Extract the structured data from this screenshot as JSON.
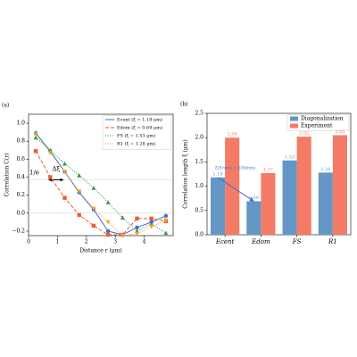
{
  "chart_data": [
    {
      "type": "line",
      "panel_label": "(a)",
      "xlabel": "Distance r (μm)",
      "ylabel": "Correlation C(r)",
      "x": [
        0.25,
        0.75,
        1.25,
        1.75,
        2.25,
        2.75,
        3.25,
        3.75,
        4.25,
        4.75
      ],
      "xlim": [
        0,
        5
      ],
      "xticks": [
        0,
        1,
        2,
        3,
        4
      ],
      "ylim": [
        -0.25,
        1.1
      ],
      "yticks": [
        {
          "value": -0.2,
          "label": "−0.2"
        },
        {
          "value": 0,
          "label": "0.0"
        },
        {
          "value": 0.2,
          "label": "0.2"
        },
        {
          "value": 0.4,
          "label": "0.4"
        },
        {
          "value": 0.6,
          "label": "0.6"
        },
        {
          "value": 0.8,
          "label": "0.8"
        },
        {
          "value": 1.0,
          "label": "1.0"
        }
      ],
      "hlines": [
        0.37,
        0
      ],
      "annotations": [
        {
          "text": "1/e"
        },
        {
          "text": "Δξ",
          "x": [
            0.7,
            1.2
          ],
          "y": 0.37
        }
      ],
      "legend": "upper right",
      "series": [
        {
          "name": "Ecent (ξ = 1.18 μm)",
          "color": "#3b6fd6",
          "marker": "o",
          "linestyle": "solid",
          "values": [
            0.89,
            0.69,
            0.46,
            0.23,
            0.04,
            -0.2,
            -0.24,
            -0.16,
            -0.1,
            -0.03
          ]
        },
        {
          "name": "Edom (ξ = 0.69 μm)",
          "color": "#ee5a3a",
          "marker": "s",
          "linestyle": "dashed",
          "values": [
            0.69,
            0.4,
            0.17,
            -0.02,
            -0.14,
            -0.24,
            -0.24,
            -0.06,
            -0.06,
            -0.09
          ]
        },
        {
          "name": "FS (ξ = 1.53 μm)",
          "color": "#3a9a4a",
          "marker": "^",
          "linestyle": "dotted",
          "values": [
            0.84,
            0.7,
            0.55,
            0.42,
            0.28,
            0.12,
            -0.05,
            -0.2,
            -0.12,
            -0.22
          ]
        },
        {
          "name": "R1 (ξ = 1.28 μm)",
          "color": "#f5a020",
          "marker": "v",
          "linestyle": "dotted",
          "values": [
            0.88,
            0.67,
            0.46,
            0.24,
            0.05,
            -0.1,
            -0.25,
            -0.23,
            -0.15,
            -0.08
          ]
        }
      ]
    },
    {
      "type": "bar",
      "panel_label": "(b)",
      "ylabel": "Correlation length ξ (μm)",
      "categories": [
        "Ecent",
        "Edom",
        "FS",
        "R1"
      ],
      "ylim": [
        0,
        2.5
      ],
      "yticks": [
        {
          "value": 0,
          "label": "0.0"
        },
        {
          "value": 0.5,
          "label": "0.5"
        },
        {
          "value": 1.0,
          "label": "1.0"
        },
        {
          "value": 1.5,
          "label": "1.5"
        },
        {
          "value": 2.0,
          "label": "2.0"
        },
        {
          "value": 2.5,
          "label": "2.5"
        }
      ],
      "legend": "upper right",
      "annotations": [
        {
          "text": "ξ(Ecent) > ξ(Edom)"
        }
      ],
      "series": [
        {
          "name": "Diagonalization",
          "color": "#6497c6",
          "values": [
            1.18,
            0.69,
            1.53,
            1.28
          ],
          "value_labels": [
            "1.18",
            "0.69",
            "1.53",
            "1.28"
          ]
        },
        {
          "name": "Experiment",
          "color": "#f47b66",
          "values": [
            2.0,
            1.27,
            2.02,
            2.05
          ],
          "value_labels": [
            "2.00",
            "1.27",
            "2.02",
            "2.05"
          ]
        }
      ]
    }
  ]
}
